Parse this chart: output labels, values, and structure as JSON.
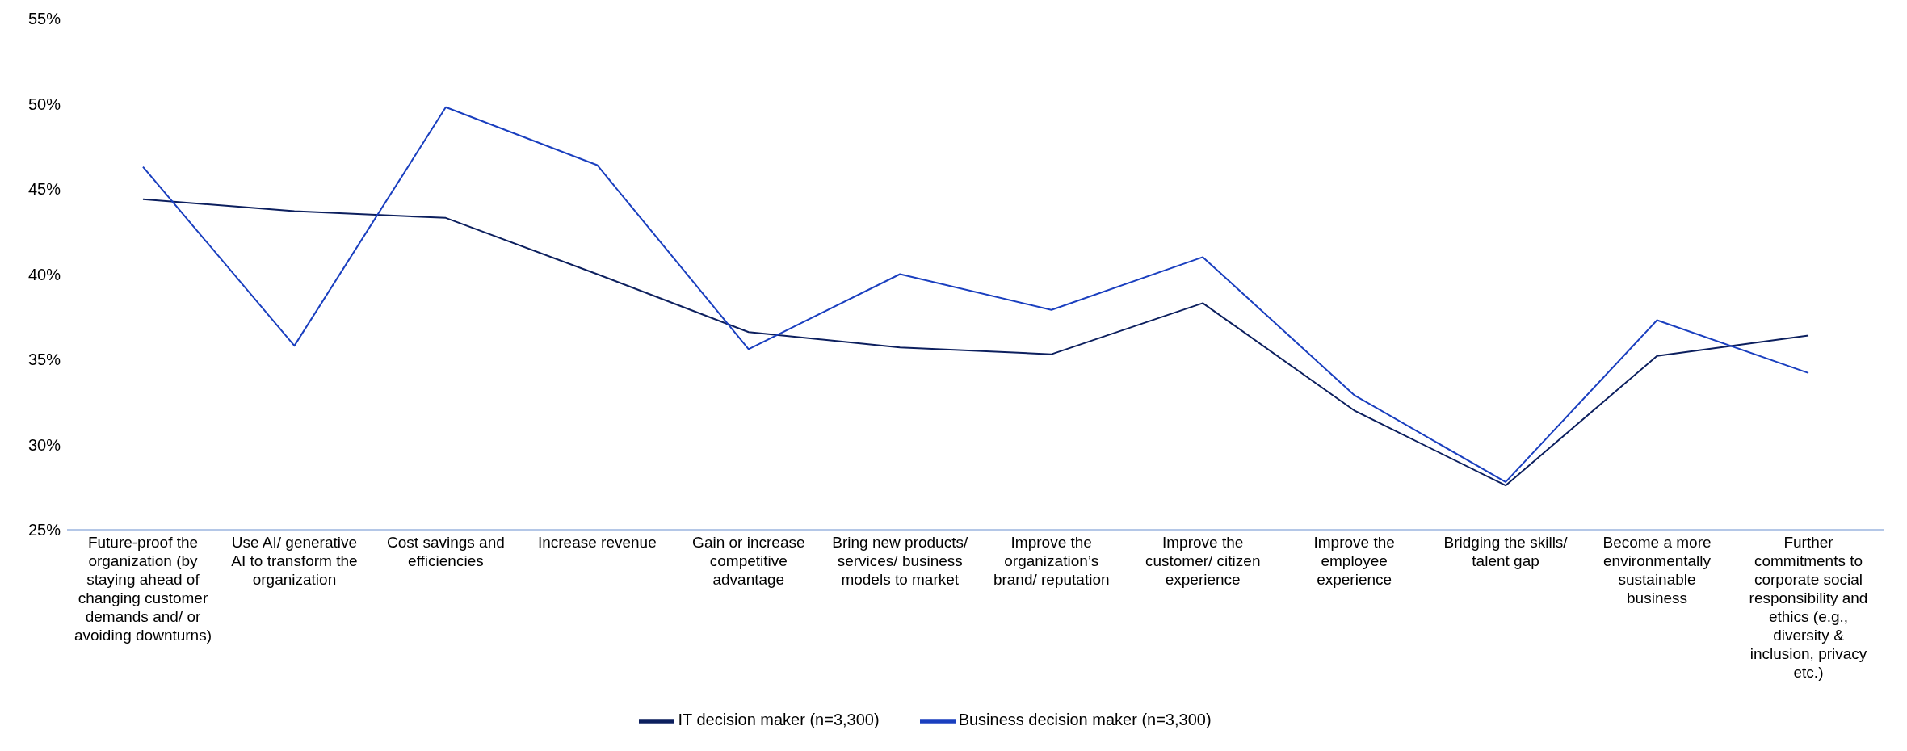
{
  "chart_data": {
    "type": "line",
    "categories": [
      "Future-proof the organization (by staying ahead of changing customer demands and/ or avoiding downturns)",
      "Use AI/ generative AI to transform the organization",
      "Cost savings and efficiencies",
      "Increase revenue",
      "Gain or increase competitive advantage",
      "Bring new products/ services/ business models to market",
      "Improve the organization’s brand/ reputation",
      "Improve the customer/ citizen experience",
      "Improve the employee experience",
      "Bridging the skills/ talent gap",
      "Become a more environmentally sustainable business",
      "Further commitments to corporate social responsibility and ethics (e.g., diversity & inclusion, privacy etc.)"
    ],
    "series": [
      {
        "name": "IT decision maker (n=3,300)",
        "color": "#0c1f5e",
        "values": [
          44.4,
          43.7,
          43.3,
          40.0,
          36.6,
          35.7,
          35.3,
          38.3,
          32.0,
          27.6,
          35.2,
          36.4
        ]
      },
      {
        "name": "Business decision maker (n=3,300)",
        "color": "#1a3fbf",
        "values": [
          46.3,
          35.8,
          49.8,
          46.4,
          35.6,
          40.0,
          37.9,
          41.0,
          32.9,
          27.8,
          37.3,
          34.2
        ]
      }
    ],
    "ylim": [
      25,
      55
    ],
    "yticks": [
      {
        "value": 25,
        "label": "25%"
      },
      {
        "value": 30,
        "label": "30%"
      },
      {
        "value": 35,
        "label": "35%"
      },
      {
        "value": 40,
        "label": "40%"
      },
      {
        "value": 45,
        "label": "45%"
      },
      {
        "value": 50,
        "label": "50%"
      },
      {
        "value": 55,
        "label": "55%"
      }
    ],
    "grid": false,
    "legend": "bottom",
    "marker": "none",
    "line_style": "solid"
  }
}
